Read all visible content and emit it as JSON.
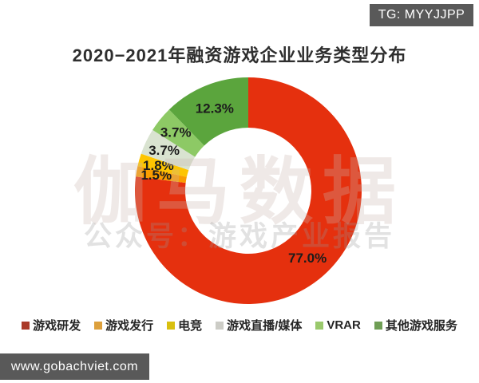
{
  "overlays": {
    "tg_badge": "TG: MYYJJPP",
    "url_badge": "www.gobachviet.com",
    "badge_background": "#595959"
  },
  "watermark": {
    "line1": "伽马数据",
    "line2": "公众号：游戏产业报告"
  },
  "chart_data": {
    "type": "pie",
    "subtype": "donut",
    "title": "2020−2021年融资游戏企业业务类型分布",
    "start_angle_deg": 0,
    "direction": "clockwise",
    "legend_position": "bottom",
    "unit": "%",
    "series": [
      {
        "name": "游戏研发",
        "value": 77.0,
        "label": "77.0%",
        "color": "#e5300e",
        "legend_color": "#aa3a28"
      },
      {
        "name": "游戏发行",
        "value": 1.5,
        "label": "1.5%",
        "color": "#fa9d00",
        "legend_color": "#dda03c"
      },
      {
        "name": "电竞",
        "value": 1.8,
        "label": "1.8%",
        "color": "#fdc501",
        "legend_color": "#d9c00f"
      },
      {
        "name": "游戏直播/媒体",
        "value": 3.7,
        "label": "3.7%",
        "color": "#d9e3d0",
        "legend_color": "#ccccc6"
      },
      {
        "name": "VRAR",
        "value": 3.7,
        "label": "3.7%",
        "color": "#8dc965",
        "legend_color": "#9ac96c"
      },
      {
        "name": "其他游戏服务",
        "value": 12.3,
        "label": "12.3%",
        "color": "#5ba53d",
        "legend_color": "#6f9e55"
      }
    ]
  }
}
